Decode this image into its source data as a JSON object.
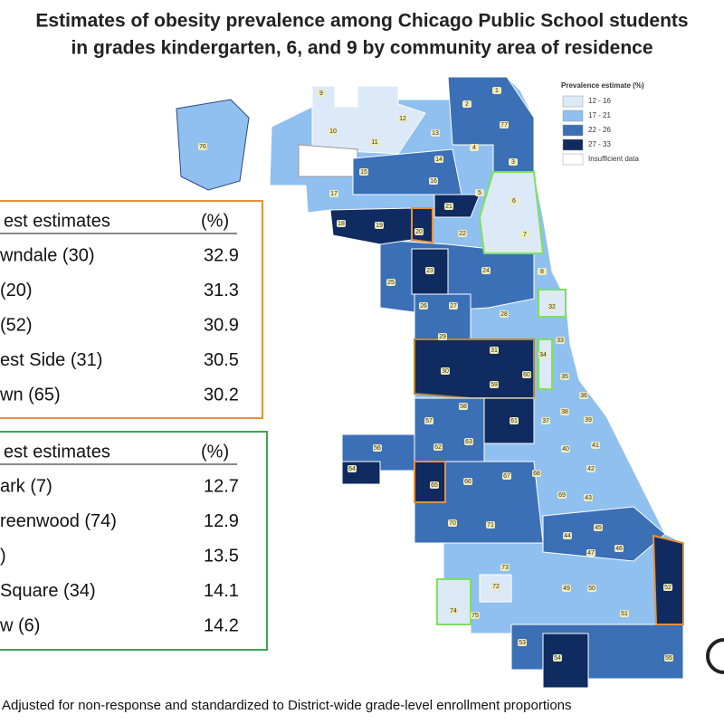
{
  "header": {
    "title_lines": [
      "Estimates of obesity prevalence among Chicago Public School students",
      "in grades kindergarten, 6, and 9 by community area of residence"
    ]
  },
  "legend": {
    "title": "Prevalence estimate (%)",
    "items": [
      {
        "label": "12 - 16",
        "color": "#dce9f8"
      },
      {
        "label": "17 - 21",
        "color": "#8fc0f0"
      },
      {
        "label": "22 - 26",
        "color": "#3b6fb6"
      },
      {
        "label": "27 - 33",
        "color": "#0f2b5f"
      },
      {
        "label": "Insufficient data",
        "color": "#ffffff"
      }
    ]
  },
  "highest_table": {
    "header": [
      "est estimates",
      "(%)"
    ],
    "rows": [
      [
        "wndale (30)",
        "32.9"
      ],
      [
        "(20)",
        "31.3"
      ],
      [
        "(52)",
        "30.9"
      ],
      [
        "est Side (31)",
        "30.5"
      ],
      [
        "wn (65)",
        "30.2"
      ]
    ]
  },
  "lowest_table": {
    "header": [
      "est estimates",
      "(%)"
    ],
    "rows": [
      [
        "ark (7)",
        "12.7"
      ],
      [
        "reenwood (74)",
        "12.9"
      ],
      [
        ")",
        "13.5"
      ],
      [
        "Square (34)",
        "14.1"
      ],
      [
        "w (6)",
        "14.2"
      ]
    ]
  },
  "area_labels": [
    "9",
    "1",
    "2",
    "10",
    "12",
    "77",
    "11",
    "13",
    "4",
    "76",
    "14",
    "3",
    "15",
    "16",
    "5",
    "6",
    "17",
    "21",
    "18",
    "19",
    "20",
    "22",
    "7",
    "25",
    "23",
    "24",
    "8",
    "26",
    "27",
    "32",
    "28",
    "29",
    "33",
    "31",
    "30",
    "60",
    "35",
    "34",
    "59",
    "36",
    "37",
    "38",
    "57",
    "58",
    "61",
    "39",
    "56",
    "62",
    "63",
    "41",
    "40",
    "64",
    "65",
    "66",
    "67",
    "68",
    "42",
    "69",
    "43",
    "70",
    "71",
    "44",
    "45",
    "46",
    "47",
    "73",
    "49",
    "50",
    "72",
    "52",
    "74",
    "75",
    "51",
    "53",
    "54",
    "55"
  ],
  "footnote": "Adjusted for non-response and standardized to District-wide grade-level enrollment proportions"
}
